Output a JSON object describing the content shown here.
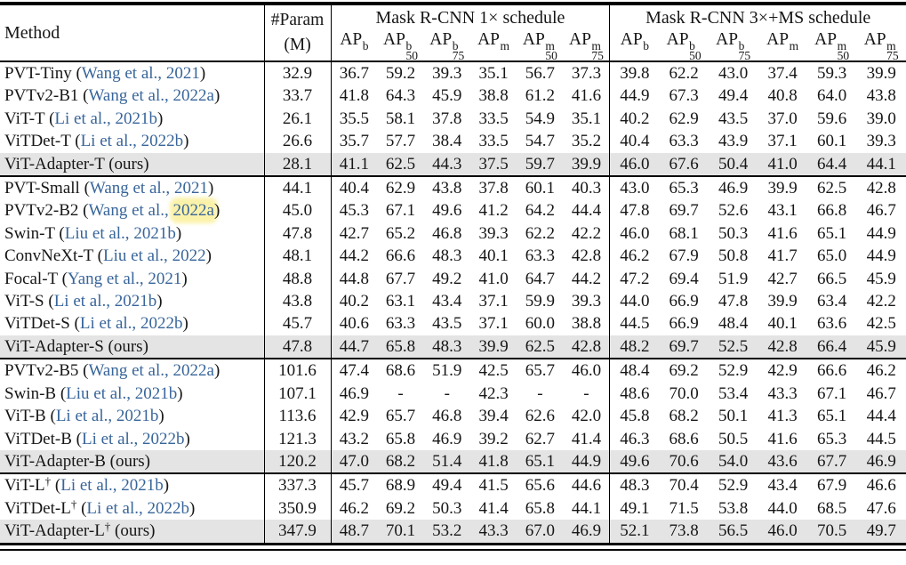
{
  "header": {
    "method": "Method",
    "param_line1": "#Param",
    "param_line2": "(M)",
    "sched1": "Mask R-CNN 1× schedule",
    "sched2": "Mask R-CNN 3×+MS schedule",
    "ap_base": "AP",
    "ap_cols": [
      {
        "sup": "b",
        "sub": ""
      },
      {
        "sup": "b",
        "sub": "50"
      },
      {
        "sup": "b",
        "sub": "75"
      },
      {
        "sup": "m",
        "sub": ""
      },
      {
        "sup": "m",
        "sub": "50"
      },
      {
        "sup": "m",
        "sub": "75"
      }
    ]
  },
  "symbols": {
    "dagger": "†",
    "open_paren": "(",
    "close_paren": ")",
    "ours_note": "(ours)"
  },
  "colors": {
    "citation_blue": "#38659a",
    "ours_row_gray": "#e4e4e4",
    "annotation_yellow": "#faf09e",
    "rule_black": "#000000"
  },
  "groups": [
    {
      "rows": [
        {
          "method": "PVT-Tiny",
          "dagger": false,
          "ours": false,
          "cite_pre": "Wang et al., ",
          "cite_year": "2021",
          "year_marked": false,
          "param": "32.9",
          "s1": [
            "36.7",
            "59.2",
            "39.3",
            "35.1",
            "56.7",
            "37.3"
          ],
          "s3": [
            "39.8",
            "62.2",
            "43.0",
            "37.4",
            "59.3",
            "39.9"
          ]
        },
        {
          "method": "PVTv2-B1",
          "dagger": false,
          "ours": false,
          "cite_pre": "Wang et al., ",
          "cite_year": "2022a",
          "year_marked": false,
          "param": "33.7",
          "s1": [
            "41.8",
            "64.3",
            "45.9",
            "38.8",
            "61.2",
            "41.6"
          ],
          "s3": [
            "44.9",
            "67.3",
            "49.4",
            "40.8",
            "64.0",
            "43.8"
          ]
        },
        {
          "method": "ViT-T",
          "dagger": false,
          "ours": false,
          "cite_pre": "Li et al., ",
          "cite_year": "2021b",
          "year_marked": false,
          "param": "26.1",
          "s1": [
            "35.5",
            "58.1",
            "37.8",
            "33.5",
            "54.9",
            "35.1"
          ],
          "s3": [
            "40.2",
            "62.9",
            "43.5",
            "37.0",
            "59.6",
            "39.0"
          ]
        },
        {
          "method": "ViTDet-T",
          "dagger": false,
          "ours": false,
          "cite_pre": "Li et al., ",
          "cite_year": "2022b",
          "year_marked": false,
          "param": "26.6",
          "s1": [
            "35.7",
            "57.7",
            "38.4",
            "33.5",
            "54.7",
            "35.2"
          ],
          "s3": [
            "40.4",
            "63.3",
            "43.9",
            "37.1",
            "60.1",
            "39.3"
          ]
        },
        {
          "method": "ViT-Adapter-T",
          "dagger": false,
          "ours": true,
          "cite_pre": "",
          "cite_year": "",
          "year_marked": false,
          "param": "28.1",
          "s1": [
            "41.1",
            "62.5",
            "44.3",
            "37.5",
            "59.7",
            "39.9"
          ],
          "s3": [
            "46.0",
            "67.6",
            "50.4",
            "41.0",
            "64.4",
            "44.1"
          ]
        }
      ]
    },
    {
      "rows": [
        {
          "method": "PVT-Small",
          "dagger": false,
          "ours": false,
          "cite_pre": "Wang et al., ",
          "cite_year": "2021",
          "year_marked": false,
          "param": "44.1",
          "s1": [
            "40.4",
            "62.9",
            "43.8",
            "37.8",
            "60.1",
            "40.3"
          ],
          "s3": [
            "43.0",
            "65.3",
            "46.9",
            "39.9",
            "62.5",
            "42.8"
          ]
        },
        {
          "method": "PVTv2-B2",
          "dagger": false,
          "ours": false,
          "cite_pre": "Wang et al., ",
          "cite_year": "2022a",
          "year_marked": true,
          "param": "45.0",
          "s1": [
            "45.3",
            "67.1",
            "49.6",
            "41.2",
            "64.2",
            "44.4"
          ],
          "s3": [
            "47.8",
            "69.7",
            "52.6",
            "43.1",
            "66.8",
            "46.7"
          ]
        },
        {
          "method": "Swin-T",
          "dagger": false,
          "ours": false,
          "cite_pre": "Liu et al., ",
          "cite_year": "2021b",
          "year_marked": false,
          "param": "47.8",
          "s1": [
            "42.7",
            "65.2",
            "46.8",
            "39.3",
            "62.2",
            "42.2"
          ],
          "s3": [
            "46.0",
            "68.1",
            "50.3",
            "41.6",
            "65.1",
            "44.9"
          ]
        },
        {
          "method": "ConvNeXt-T",
          "dagger": false,
          "ours": false,
          "cite_pre": "Liu et al., ",
          "cite_year": "2022",
          "year_marked": false,
          "param": "48.1",
          "s1": [
            "44.2",
            "66.6",
            "48.3",
            "40.1",
            "63.3",
            "42.8"
          ],
          "s3": [
            "46.2",
            "67.9",
            "50.8",
            "41.7",
            "65.0",
            "44.9"
          ]
        },
        {
          "method": "Focal-T",
          "dagger": false,
          "ours": false,
          "cite_pre": "Yang et al., ",
          "cite_year": "2021",
          "year_marked": false,
          "param": "48.8",
          "s1": [
            "44.8",
            "67.7",
            "49.2",
            "41.0",
            "64.7",
            "44.2"
          ],
          "s3": [
            "47.2",
            "69.4",
            "51.9",
            "42.7",
            "66.5",
            "45.9"
          ]
        },
        {
          "method": "ViT-S",
          "dagger": false,
          "ours": false,
          "cite_pre": "Li et al., ",
          "cite_year": "2021b",
          "year_marked": false,
          "param": "43.8",
          "s1": [
            "40.2",
            "63.1",
            "43.4",
            "37.1",
            "59.9",
            "39.3"
          ],
          "s3": [
            "44.0",
            "66.9",
            "47.8",
            "39.9",
            "63.4",
            "42.2"
          ]
        },
        {
          "method": "ViTDet-S",
          "dagger": false,
          "ours": false,
          "cite_pre": "Li et al., ",
          "cite_year": "2022b",
          "year_marked": false,
          "param": "45.7",
          "s1": [
            "40.6",
            "63.3",
            "43.5",
            "37.1",
            "60.0",
            "38.8"
          ],
          "s3": [
            "44.5",
            "66.9",
            "48.4",
            "40.1",
            "63.6",
            "42.5"
          ]
        },
        {
          "method": "ViT-Adapter-S",
          "dagger": false,
          "ours": true,
          "cite_pre": "",
          "cite_year": "",
          "year_marked": false,
          "param": "47.8",
          "s1": [
            "44.7",
            "65.8",
            "48.3",
            "39.9",
            "62.5",
            "42.8"
          ],
          "s3": [
            "48.2",
            "69.7",
            "52.5",
            "42.8",
            "66.4",
            "45.9"
          ]
        }
      ]
    },
    {
      "rows": [
        {
          "method": "PVTv2-B5",
          "dagger": false,
          "ours": false,
          "cite_pre": "Wang et al., ",
          "cite_year": "2022a",
          "year_marked": false,
          "param": "101.6",
          "s1": [
            "47.4",
            "68.6",
            "51.9",
            "42.5",
            "65.7",
            "46.0"
          ],
          "s3": [
            "48.4",
            "69.2",
            "52.9",
            "42.9",
            "66.6",
            "46.2"
          ]
        },
        {
          "method": "Swin-B",
          "dagger": false,
          "ours": false,
          "cite_pre": "Liu et al., ",
          "cite_year": "2021b",
          "year_marked": false,
          "param": "107.1",
          "s1": [
            "46.9",
            "-",
            "-",
            "42.3",
            "-",
            "-"
          ],
          "s3": [
            "48.6",
            "70.0",
            "53.4",
            "43.3",
            "67.1",
            "46.7"
          ]
        },
        {
          "method": "ViT-B",
          "dagger": false,
          "ours": false,
          "cite_pre": "Li et al., ",
          "cite_year": "2021b",
          "year_marked": false,
          "param": "113.6",
          "s1": [
            "42.9",
            "65.7",
            "46.8",
            "39.4",
            "62.6",
            "42.0"
          ],
          "s3": [
            "45.8",
            "68.2",
            "50.1",
            "41.3",
            "65.1",
            "44.4"
          ]
        },
        {
          "method": "ViTDet-B",
          "dagger": false,
          "ours": false,
          "cite_pre": "Li et al., ",
          "cite_year": "2022b",
          "year_marked": false,
          "param": "121.3",
          "s1": [
            "43.2",
            "65.8",
            "46.9",
            "39.2",
            "62.7",
            "41.4"
          ],
          "s3": [
            "46.3",
            "68.6",
            "50.5",
            "41.6",
            "65.3",
            "44.5"
          ]
        },
        {
          "method": "ViT-Adapter-B",
          "dagger": false,
          "ours": true,
          "cite_pre": "",
          "cite_year": "",
          "year_marked": false,
          "param": "120.2",
          "s1": [
            "47.0",
            "68.2",
            "51.4",
            "41.8",
            "65.1",
            "44.9"
          ],
          "s3": [
            "49.6",
            "70.6",
            "54.0",
            "43.6",
            "67.7",
            "46.9"
          ]
        }
      ]
    },
    {
      "rows": [
        {
          "method": "ViT-L",
          "dagger": true,
          "ours": false,
          "cite_pre": "Li et al., ",
          "cite_year": "2021b",
          "year_marked": false,
          "param": "337.3",
          "s1": [
            "45.7",
            "68.9",
            "49.4",
            "41.5",
            "65.6",
            "44.6"
          ],
          "s3": [
            "48.3",
            "70.4",
            "52.9",
            "43.4",
            "67.9",
            "46.6"
          ]
        },
        {
          "method": "ViTDet-L",
          "dagger": true,
          "ours": false,
          "cite_pre": "Li et al., ",
          "cite_year": "2022b",
          "year_marked": false,
          "param": "350.9",
          "s1": [
            "46.2",
            "69.2",
            "50.3",
            "41.4",
            "65.8",
            "44.1"
          ],
          "s3": [
            "49.1",
            "71.5",
            "53.8",
            "44.0",
            "68.5",
            "47.6"
          ]
        },
        {
          "method": "ViT-Adapter-L",
          "dagger": true,
          "ours": true,
          "cite_pre": "",
          "cite_year": "",
          "year_marked": false,
          "param": "347.9",
          "s1": [
            "48.7",
            "70.1",
            "53.2",
            "43.3",
            "67.0",
            "46.9"
          ],
          "s3": [
            "52.1",
            "73.8",
            "56.5",
            "46.0",
            "70.5",
            "49.7"
          ]
        }
      ]
    }
  ]
}
